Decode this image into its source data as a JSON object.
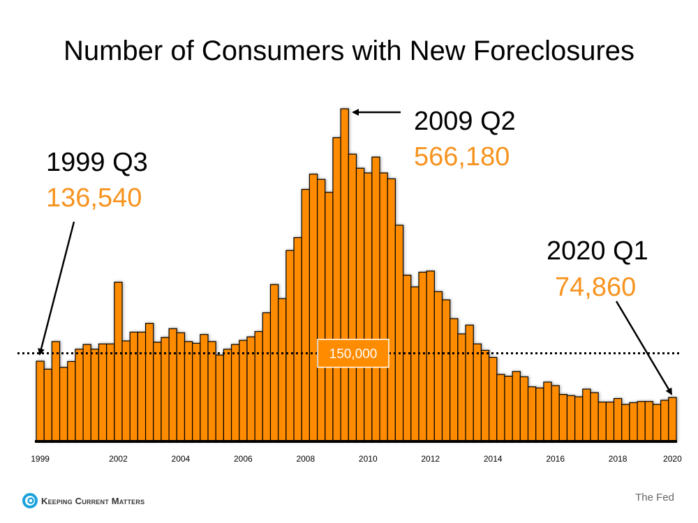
{
  "chart_data": {
    "type": "bar",
    "title": "Number of Consumers with New Foreclosures",
    "xlabel": "",
    "ylabel": "",
    "ylim": [
      0,
      566180
    ],
    "grid": false,
    "bar_color": "#ff8c00",
    "x_tick_labels": [
      {
        "label": "1999",
        "bar_index": 0
      },
      {
        "label": "2002",
        "bar_index": 10
      },
      {
        "label": "2004",
        "bar_index": 18
      },
      {
        "label": "2006",
        "bar_index": 26
      },
      {
        "label": "2008",
        "bar_index": 34
      },
      {
        "label": "2010",
        "bar_index": 42
      },
      {
        "label": "2012",
        "bar_index": 50
      },
      {
        "label": "2014",
        "bar_index": 58
      },
      {
        "label": "2016",
        "bar_index": 66
      },
      {
        "label": "2018",
        "bar_index": 74
      },
      {
        "label": "2020",
        "bar_index": 81
      }
    ],
    "values": [
      136540,
      123000,
      170000,
      126000,
      136000,
      157000,
      165000,
      157000,
      166000,
      166000,
      271000,
      171000,
      186000,
      186000,
      201000,
      169000,
      177000,
      192000,
      185000,
      170000,
      167000,
      182000,
      170000,
      147000,
      157000,
      165000,
      172000,
      178000,
      187000,
      219000,
      267000,
      243000,
      325000,
      347000,
      429000,
      455000,
      446000,
      424000,
      517000,
      566180,
      489000,
      465000,
      457000,
      484000,
      457000,
      447000,
      368000,
      283000,
      263000,
      288000,
      290000,
      255000,
      241000,
      209000,
      183000,
      198000,
      166000,
      155000,
      143000,
      114000,
      111000,
      119000,
      110000,
      93000,
      91000,
      101000,
      95000,
      80000,
      78000,
      76000,
      89000,
      83000,
      67000,
      67000,
      73000,
      63000,
      66000,
      68000,
      68000,
      63000,
      70000,
      74860
    ],
    "reference_line": {
      "value": 150000,
      "label": "150,000"
    },
    "annotations": [
      {
        "label": "1999 Q3",
        "value_text": "136,540",
        "bar_index": 0
      },
      {
        "label": "2009 Q2",
        "value_text": "566,180",
        "bar_index": 39
      },
      {
        "label": "2020 Q1",
        "value_text": "74,860",
        "bar_index": 81
      }
    ],
    "value_color": "#f7931e"
  },
  "footer": {
    "logo_text": "Keeping Current Matters",
    "source": "The Fed"
  }
}
